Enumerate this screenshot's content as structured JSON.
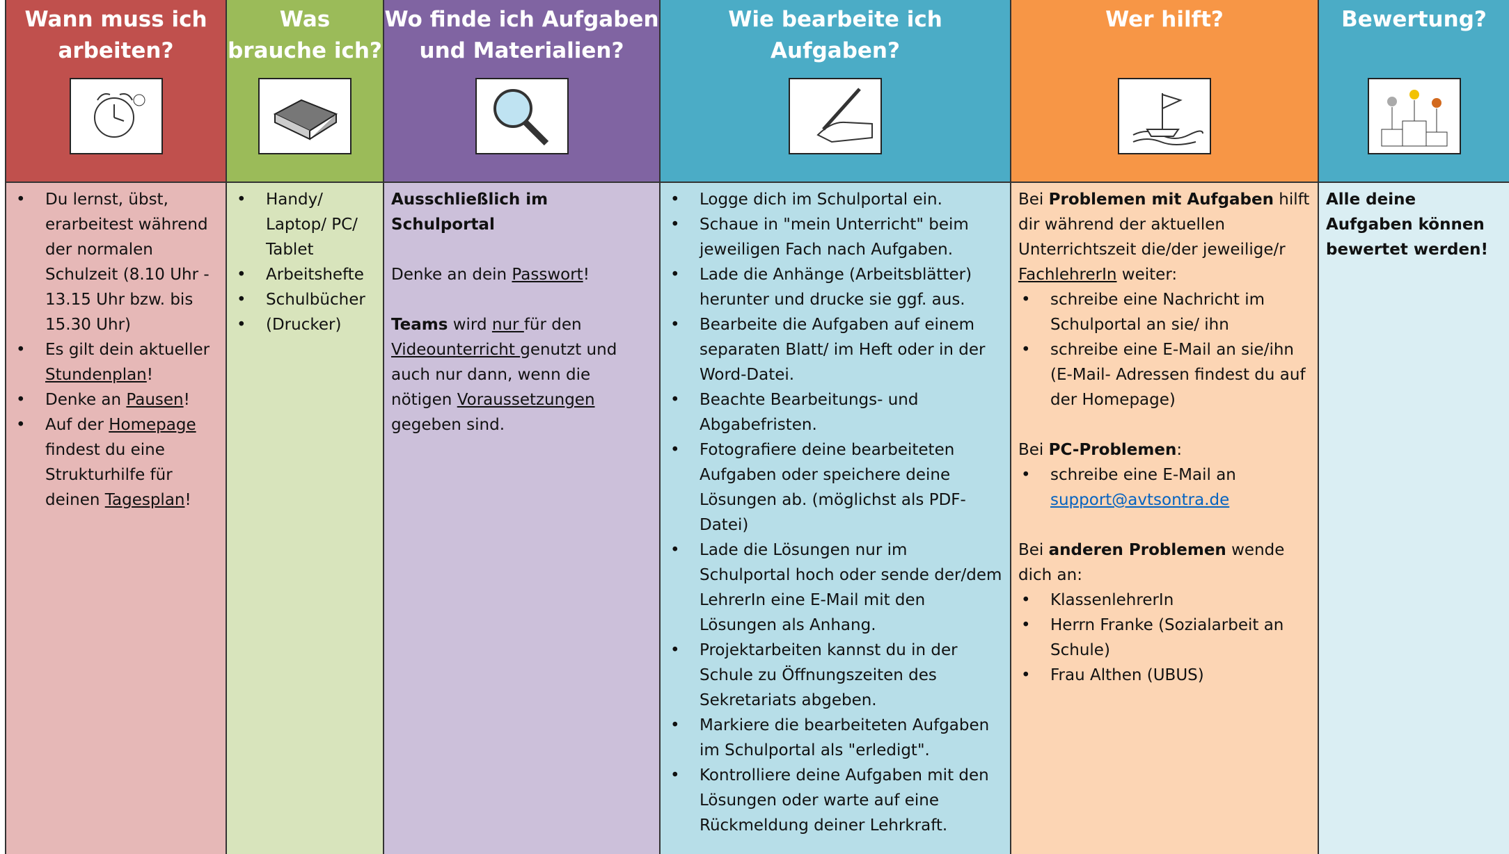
{
  "columns": [
    {
      "title": "Wann muss ich arbeiten?",
      "header_color": "#c0504d",
      "body_color": "#e6b8b7",
      "sections": [
        [
          {
            "type": "li",
            "text": [
              "Du lernst, übst, erarbeitest während der normalen Schulzeit (8.10 Uhr - 13.15 Uhr bzw. bis 15.30 Uhr)"
            ]
          },
          {
            "type": "li",
            "text": [
              "Es gilt dein aktueller ",
              {
                "u": "Stundenplan"
              },
              "!"
            ]
          },
          {
            "type": "li",
            "text": [
              "Denke an ",
              {
                "u": "Pausen"
              },
              "!"
            ]
          },
          {
            "type": "li",
            "text": [
              "Auf der ",
              {
                "u": "Homepage"
              },
              " findest du eine Strukturhilfe für deinen ",
              {
                "u": "Tagesplan"
              },
              "!"
            ]
          }
        ]
      ]
    },
    {
      "title": "Was brauche ich?",
      "header_color": "#9bbb59",
      "body_color": "#d8e4bc",
      "sections": [
        [
          {
            "type": "li",
            "text": [
              "Handy/ Laptop/ PC/ Tablet"
            ]
          },
          {
            "type": "li",
            "text": [
              "Arbeitshefte"
            ]
          },
          {
            "type": "li",
            "text": [
              "Schulbücher"
            ]
          },
          {
            "type": "li",
            "text": [
              "(Drucker)"
            ]
          }
        ]
      ]
    },
    {
      "title": "Wo finde ich Aufgaben und Materialien?",
      "header_color": "#8064a2",
      "body_color": "#ccc0da",
      "sections": [
        [
          {
            "type": "p",
            "text": [
              {
                "b": "Ausschließlich im Schulportal"
              }
            ]
          }
        ],
        [
          {
            "type": "p",
            "text": [
              "Denke an dein ",
              {
                "u": "Passwort"
              },
              "!"
            ]
          }
        ],
        [
          {
            "type": "p",
            "text": [
              {
                "b": "Teams"
              },
              " wird ",
              {
                "u": "nur "
              },
              "für den ",
              {
                "u": "Videounterricht "
              },
              "genutzt und auch nur dann, wenn die nötigen ",
              {
                "u": "Voraussetzungen"
              },
              " gegeben sind."
            ]
          }
        ]
      ]
    },
    {
      "title": "Wie bearbeite ich Aufgaben?",
      "header_color": "#4bacc6",
      "body_color": "#b7dee8",
      "sections": [
        [
          {
            "type": "li",
            "text": [
              "Logge dich im Schulportal ein."
            ]
          },
          {
            "type": "li",
            "text": [
              "Schaue in \"mein Unterricht\" beim jeweiligen Fach nach Aufgaben."
            ]
          },
          {
            "type": "li",
            "text": [
              "Lade die Anhänge (Arbeitsblätter) herunter und drucke sie ggf. aus."
            ]
          },
          {
            "type": "li",
            "text": [
              "Bearbeite die Aufgaben auf einem separaten Blatt/ im Heft oder in der Word-Datei."
            ]
          },
          {
            "type": "li",
            "text": [
              "Beachte Bearbeitungs- und Abgabefristen."
            ]
          },
          {
            "type": "li",
            "text": [
              "Fotografiere deine bearbeiteten Aufgaben oder speichere deine Lösungen ab. (möglichst als PDF-Datei)"
            ]
          },
          {
            "type": "li",
            "text": [
              "Lade die Lösungen nur im Schulportal hoch oder sende der/dem LehrerIn eine E-Mail mit den Lösungen als Anhang."
            ]
          },
          {
            "type": "li",
            "text": [
              "Projektarbeiten kannst du in der Schule zu Öffnungszeiten des Sekretariats abgeben."
            ]
          },
          {
            "type": "li",
            "text": [
              "Markiere die bearbeiteten Aufgaben im Schulportal als \"erledigt\"."
            ]
          },
          {
            "type": "li",
            "text": [
              "Kontrolliere deine Aufgaben mit den Lösungen oder warte auf eine Rückmeldung deiner Lehrkraft."
            ]
          }
        ]
      ]
    },
    {
      "title": "Wer hilft?",
      "header_color": "#f79646",
      "body_color": "#fcd5b4",
      "sections": [
        [
          {
            "type": "p",
            "text": [
              "Bei ",
              {
                "b": "Problemen mit Aufgaben"
              },
              " hilft dir während der aktuellen Unterrichtszeit die/der jeweilige/r ",
              {
                "u": "FachlehrerIn"
              },
              " weiter:"
            ]
          },
          {
            "type": "li",
            "text": [
              "schreibe eine Nachricht im Schulportal an sie/ ihn"
            ]
          },
          {
            "type": "li",
            "text": [
              "schreibe eine E-Mail an sie/ihn (E-Mail- Adressen findest du auf der Homepage)"
            ]
          }
        ],
        [
          {
            "type": "p",
            "text": [
              "Bei ",
              {
                "b": "PC-Problemen"
              },
              ":"
            ]
          },
          {
            "type": "li",
            "text": [
              "schreibe eine E-Mail an ",
              {
                "a": "support@avtsontra.de"
              }
            ]
          }
        ],
        [
          {
            "type": "p",
            "text": [
              "Bei ",
              {
                "b": "anderen Problemen"
              },
              " wende dich an:"
            ]
          },
          {
            "type": "li",
            "text": [
              "KlassenlehrerIn"
            ]
          },
          {
            "type": "li",
            "text": [
              "Herrn Franke (Sozialarbeit an Schule)"
            ]
          },
          {
            "type": "li",
            "text": [
              "Frau Althen (UBUS)"
            ]
          }
        ]
      ]
    },
    {
      "title": "Bewertung?",
      "header_color": "#4bacc6",
      "body_color": "#daeef3",
      "sections": [
        [
          {
            "type": "p",
            "text": [
              {
                "b": "Alle deine Aufgaben können bewertet werden!"
              }
            ]
          }
        ]
      ]
    }
  ]
}
